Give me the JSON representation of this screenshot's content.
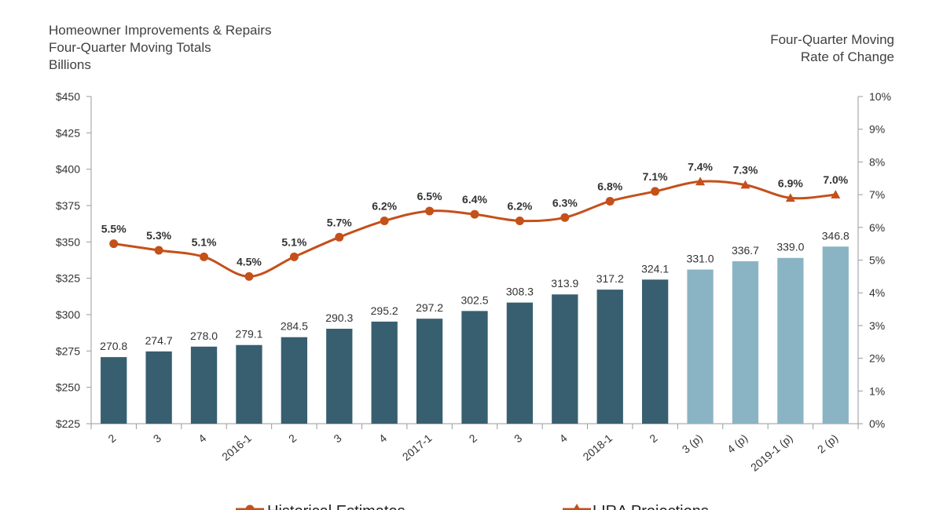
{
  "chart_data": {
    "type": "bar+line",
    "title_left": [
      "Homeowner Improvements  & Repairs",
      "Four-Quarter  Moving Totals",
      "Billions"
    ],
    "title_right": [
      "Four-Quarter Moving",
      "Rate of Change"
    ],
    "categories": [
      "2",
      "3",
      "4",
      "2016-1",
      "2",
      "3",
      "4",
      "2017-1",
      "2",
      "3",
      "4",
      "2018-1",
      "2",
      "3 (p)",
      "4 (p)",
      "2019-1 (p)",
      "2 (p)"
    ],
    "bar_values": [
      270.8,
      274.7,
      278.0,
      279.1,
      284.5,
      290.3,
      295.2,
      297.2,
      302.5,
      308.3,
      313.9,
      317.2,
      324.1,
      331.0,
      336.7,
      339.0,
      346.8
    ],
    "bar_labels": [
      "270.8",
      "274.7",
      "278.0",
      "279.1",
      "284.5",
      "290.3",
      "295.2",
      "297.2",
      "302.5",
      "308.3",
      "313.9",
      "317.2",
      "324.1",
      "331.0",
      "336.7",
      "339.0",
      "346.8"
    ],
    "projected_from_index": 13,
    "rate_values": [
      5.5,
      5.3,
      5.1,
      4.5,
      5.1,
      5.7,
      6.2,
      6.5,
      6.4,
      6.2,
      6.3,
      6.8,
      7.1,
      7.4,
      7.3,
      6.9,
      7.0
    ],
    "rate_labels": [
      "5.5%",
      "5.3%",
      "5.1%",
      "4.5%",
      "5.1%",
      "5.7%",
      "6.2%",
      "6.5%",
      "6.4%",
      "6.2%",
      "6.3%",
      "6.8%",
      "7.1%",
      "7.4%",
      "7.3%",
      "6.9%",
      "7.0%"
    ],
    "y_left": {
      "min": 225,
      "max": 450,
      "step": 25,
      "ticks": [
        "$225",
        "$250",
        "$275",
        "$300",
        "$325",
        "$350",
        "$375",
        "$400",
        "$425",
        "$450"
      ]
    },
    "y_right": {
      "min": 0,
      "max": 10,
      "step": 1,
      "ticks": [
        "0%",
        "1%",
        "2%",
        "3%",
        "4%",
        "5%",
        "6%",
        "7%",
        "8%",
        "9%",
        "10%"
      ]
    },
    "legend": [
      "Historical Estimates",
      "LIRA Projections"
    ],
    "colors": {
      "bar_historical": "#375f70",
      "bar_projected": "#8ab4c4",
      "line": "#c4501a",
      "axis": "#9a9a9a",
      "text": "#333333"
    }
  }
}
